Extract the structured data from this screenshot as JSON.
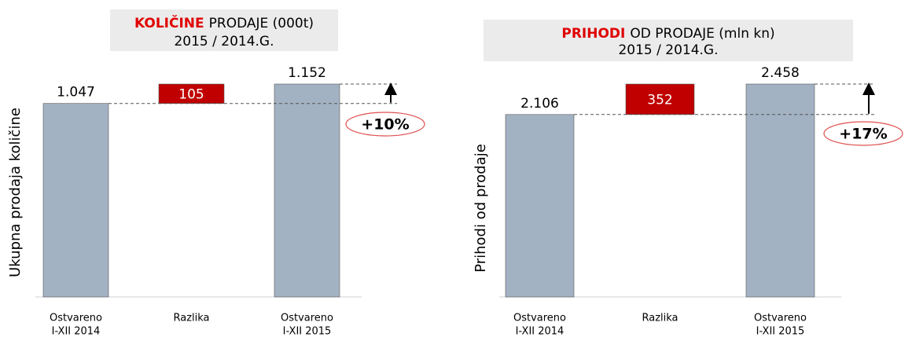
{
  "chart_data": [
    {
      "type": "waterfall",
      "title_highlight": "KOLIČINE",
      "title": "PRODAJE (000t)",
      "subtitle": "2015 / 2014.G.",
      "ylabel": "Ukupna prodaja količine",
      "categories": [
        [
          "Ostvareno",
          "I-XII 2014"
        ],
        [
          "Razlika"
        ],
        [
          "Ostvareno",
          "I-XII 2015"
        ]
      ],
      "values": [
        1047,
        105,
        1152
      ],
      "value_labels": [
        "1.047",
        "105",
        "1.152"
      ],
      "colors": [
        "#a3b2c2",
        "#c00000",
        "#a3b2c2"
      ],
      "highlight_color": "#e00000",
      "annotation": "+10%"
    },
    {
      "type": "waterfall",
      "title_highlight": "PRIHODI",
      "title": "OD PRODAJE (mln kn)",
      "subtitle": "2015 / 2014.G.",
      "ylabel": "Prihodi od prodaje",
      "categories": [
        [
          "Ostvareno",
          "I-XII 2014"
        ],
        [
          "Razlika"
        ],
        [
          "Ostvareno",
          "I-XII 2015"
        ]
      ],
      "values": [
        2106,
        352,
        2458
      ],
      "value_labels": [
        "2.106",
        "352",
        "2.458"
      ],
      "colors": [
        "#a3b2c2",
        "#c00000",
        "#a3b2c2"
      ],
      "highlight_color": "#e00000",
      "annotation": "+17%"
    }
  ]
}
